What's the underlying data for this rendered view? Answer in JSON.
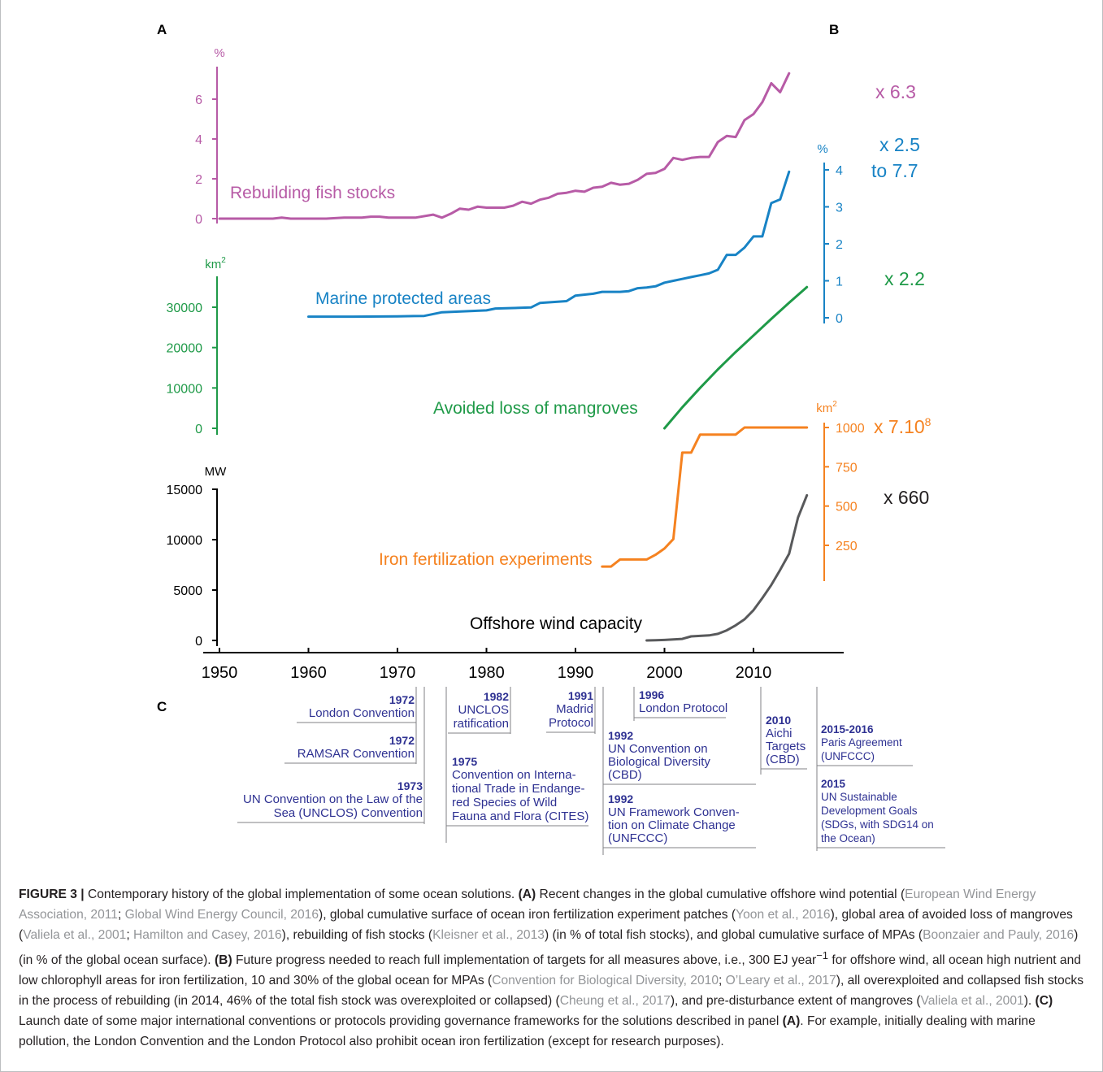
{
  "panels": {
    "A": "A",
    "B": "B",
    "C": "C"
  },
  "chart_data": {
    "type": "line",
    "x_axis": {
      "ticks": [
        1950,
        1960,
        1970,
        1980,
        1990,
        2000,
        2010
      ],
      "range": [
        1950,
        2017
      ]
    },
    "series": [
      {
        "name": "Rebuilding fish stocks",
        "axis_unit": "%",
        "axis_ticks": [
          0,
          2,
          4,
          6
        ],
        "ylim": [
          0,
          7.5
        ],
        "color": "#b75ba6",
        "x": [
          1950,
          1952,
          1954,
          1956,
          1957,
          1958,
          1960,
          1962,
          1964,
          1966,
          1967,
          1968,
          1969,
          1970,
          1972,
          1974,
          1975,
          1976,
          1977,
          1978,
          1979,
          1980,
          1981,
          1982,
          1983,
          1984,
          1985,
          1986,
          1987,
          1988,
          1989,
          1990,
          1991,
          1992,
          1993,
          1994,
          1995,
          1996,
          1997,
          1998,
          1999,
          2000,
          2001,
          2002,
          2003,
          2004,
          2005,
          2006,
          2007,
          2008,
          2009,
          2010,
          2011,
          2012,
          2013,
          2014
        ],
        "y": [
          0,
          0,
          0,
          0,
          0.05,
          0,
          0,
          0,
          0.05,
          0.05,
          0.1,
          0.1,
          0.05,
          0.05,
          0.05,
          0.2,
          0.05,
          0.25,
          0.5,
          0.45,
          0.6,
          0.55,
          0.55,
          0.55,
          0.65,
          0.85,
          0.75,
          0.95,
          1.05,
          1.25,
          1.3,
          1.4,
          1.35,
          1.55,
          1.6,
          1.8,
          1.7,
          1.75,
          1.95,
          2.25,
          2.3,
          2.5,
          3.05,
          2.95,
          3.05,
          3.1,
          3.1,
          3.85,
          4.15,
          4.1,
          4.95,
          5.25,
          5.85,
          6.8,
          6.35,
          7.3
        ]
      },
      {
        "name": "Marine protected areas",
        "axis_unit": "%",
        "axis_ticks": [
          0,
          1,
          2,
          3,
          4
        ],
        "ylim": [
          0,
          4
        ],
        "color": "#1883c5",
        "x": [
          1960,
          1965,
          1970,
          1973,
          1975,
          1980,
          1981,
          1985,
          1986,
          1989,
          1990,
          1992,
          1993,
          1995,
          1996,
          1997,
          1998,
          1999,
          2000,
          2001,
          2002,
          2003,
          2004,
          2005,
          2006,
          2007,
          2008,
          2009,
          2010,
          2011,
          2012,
          2013,
          2014
        ],
        "y": [
          0.03,
          0.03,
          0.04,
          0.05,
          0.15,
          0.2,
          0.25,
          0.28,
          0.4,
          0.45,
          0.6,
          0.65,
          0.7,
          0.7,
          0.72,
          0.8,
          0.82,
          0.85,
          0.95,
          1.0,
          1.05,
          1.1,
          1.15,
          1.2,
          1.3,
          1.7,
          1.7,
          1.9,
          2.2,
          2.2,
          3.1,
          3.2,
          3.95
        ]
      },
      {
        "name": "Avoided loss of mangroves",
        "axis_unit": "km2",
        "axis_ticks": [
          0,
          10000,
          20000,
          30000
        ],
        "ylim": [
          0,
          38000
        ],
        "color": "#1f9a48",
        "x": [
          2000,
          2002,
          2004,
          2006,
          2008,
          2010,
          2012,
          2014,
          2016
        ],
        "y": [
          0,
          5200,
          10000,
          14600,
          18900,
          23000,
          27100,
          31100,
          35000
        ]
      },
      {
        "name": "Iron fertilization experiments",
        "axis_unit": "km2",
        "axis_ticks": [
          250,
          500,
          750,
          1000
        ],
        "ylim": [
          100,
          1000
        ],
        "color": "#f58220",
        "x": [
          1993,
          1994,
          1995,
          1996,
          1997,
          1998,
          1999,
          2000,
          2001,
          2002,
          2003,
          2004,
          2005,
          2006,
          2007,
          2008,
          2009,
          2010,
          2012,
          2014,
          2016
        ],
        "y": [
          115,
          115,
          160,
          160,
          160,
          160,
          190,
          230,
          290,
          840,
          840,
          955,
          955,
          955,
          955,
          955,
          1000,
          1000,
          1000,
          1000,
          1000
        ]
      },
      {
        "name": "Offshore wind capacity",
        "axis_unit": "MW",
        "axis_ticks": [
          0,
          5000,
          10000,
          15000
        ],
        "ylim": [
          0,
          15000
        ],
        "color": "#58595b",
        "x": [
          1998,
          1999,
          2000,
          2001,
          2002,
          2003,
          2004,
          2005,
          2006,
          2007,
          2008,
          2009,
          2010,
          2011,
          2012,
          2013,
          2014,
          2015,
          2016
        ],
        "y": [
          0,
          20,
          50,
          100,
          150,
          400,
          450,
          500,
          650,
          1000,
          1500,
          2100,
          3000,
          4200,
          5500,
          7000,
          8600,
          12200,
          14400
        ]
      }
    ],
    "multipliers": [
      {
        "text": "x 6.3",
        "color": "#b75ba6"
      },
      {
        "text": "x 2.5",
        "text2": "to 7.7",
        "color": "#1883c5"
      },
      {
        "text": "x 2.2",
        "color": "#1f9a48"
      },
      {
        "text": "x 7.10",
        "sup": "8",
        "color": "#f58220"
      },
      {
        "text": "x 660",
        "color": "#231f20"
      }
    ]
  },
  "conventions": [
    {
      "year": "1972",
      "lines": [
        "London Convention"
      ]
    },
    {
      "year": "1972",
      "lines": [
        "RAMSAR Convention"
      ]
    },
    {
      "year": "1973",
      "lines": [
        "UN Convention on the Law of the",
        "Sea (UNCLOS) Convention"
      ]
    },
    {
      "year": "1982",
      "lines": [
        "UNCLOS",
        "ratification"
      ]
    },
    {
      "year": "1975",
      "lines": [
        "Convention on Interna-",
        "tional Trade in Endange-",
        "red Species of Wild",
        "Fauna and Flora (CITES)"
      ]
    },
    {
      "year": "1991",
      "lines": [
        "Madrid",
        "Protocol"
      ]
    },
    {
      "year": "1996",
      "lines": [
        "London Protocol"
      ]
    },
    {
      "year": "1992",
      "lines": [
        "UN Convention on",
        "Biological Diversity",
        "(CBD)"
      ]
    },
    {
      "year": "1992",
      "lines": [
        "UN Framework Conven-",
        "tion on Climate Change",
        "(UNFCCC)"
      ]
    },
    {
      "year": "2010",
      "lines": [
        "Aichi",
        "Targets",
        "(CBD)"
      ]
    },
    {
      "year": "2015-2016",
      "lines": [
        "Paris Agreement",
        "(UNFCCC)"
      ]
    },
    {
      "year": "2015",
      "lines": [
        "UN Sustainable",
        "Development Goals",
        "(SDGs, with SDG14 on",
        "the Ocean)"
      ]
    }
  ],
  "caption": {
    "figure_label": "FIGURE 3 |",
    "segments": [
      {
        "t": " Contemporary history of the global implementation of some ocean solutions. "
      },
      {
        "t": "(A)",
        "b": true
      },
      {
        "t": " Recent changes in the global cumulative offshore wind potential ("
      },
      {
        "t": "European Wind Energy Association, 2011",
        "r": true
      },
      {
        "t": "; "
      },
      {
        "t": "Global Wind Energy Council, 2016",
        "r": true
      },
      {
        "t": "), global cumulative surface of ocean iron fertilization experiment patches ("
      },
      {
        "t": "Yoon et al., 2016",
        "r": true
      },
      {
        "t": "), global area of avoided loss of mangroves ("
      },
      {
        "t": "Valiela et al., 2001",
        "r": true
      },
      {
        "t": "; "
      },
      {
        "t": "Hamilton and Casey, 2016",
        "r": true
      },
      {
        "t": "), rebuilding of fish stocks ("
      },
      {
        "t": "Kleisner et al., 2013",
        "r": true
      },
      {
        "t": ") (in % of total fish stocks), and global cumulative surface of MPAs ("
      },
      {
        "t": "Boonzaier and Pauly, 2016",
        "r": true
      },
      {
        "t": ") (in % of the global ocean surface). "
      },
      {
        "t": "(B)",
        "b": true
      },
      {
        "t": " Future progress needed to reach full implementation of targets for all measures above, i.e., 300 EJ year"
      },
      {
        "t": "−1",
        "sup": true
      },
      {
        "t": " for offshore wind, all ocean high nutrient and low chlorophyll areas for iron fertilization, 10 and 30% of the global ocean for MPAs ("
      },
      {
        "t": "Convention for Biological Diversity, 2010",
        "r": true
      },
      {
        "t": "; "
      },
      {
        "t": "O’Leary et al., 2017",
        "r": true
      },
      {
        "t": "), all overexploited and collapsed fish stocks in the process of rebuilding (in 2014, 46% of the total fish stock was overexploited or collapsed) ("
      },
      {
        "t": "Cheung et al., 2017",
        "r": true
      },
      {
        "t": "), and pre-disturbance extent of mangroves ("
      },
      {
        "t": "Valiela et al., 2001",
        "r": true
      },
      {
        "t": "). "
      },
      {
        "t": "(C)",
        "b": true
      },
      {
        "t": " Launch date of some major international conventions or protocols providing governance frameworks for the solutions described in panel "
      },
      {
        "t": "(A)",
        "b": true
      },
      {
        "t": ". For example, initially dealing with marine pollution, the London Convention and the London Protocol also prohibit ocean iron fertilization (except for research purposes)."
      }
    ]
  }
}
